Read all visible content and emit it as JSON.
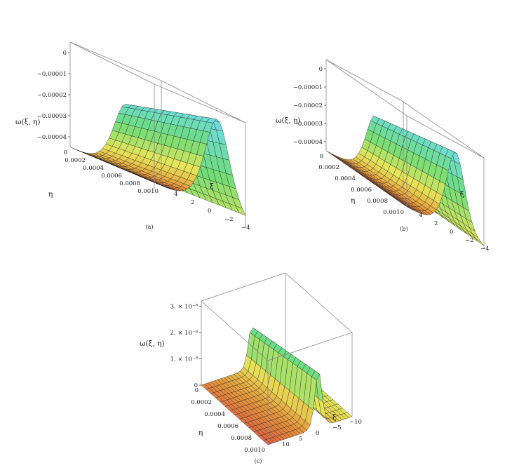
{
  "chart_data": [
    {
      "type": "surface",
      "caption": "(a)",
      "zlabel": "ω(ξ, η)",
      "xlabel": "ξ",
      "ylabel": "η",
      "x_ticks": [
        "4",
        "2",
        "0",
        "−2",
        "−4"
      ],
      "y_ticks": [
        "0",
        "0.0002",
        "0.0004",
        "0.0006",
        "0.0008",
        "0.0010"
      ],
      "z_ticks": [
        "0",
        "−0.00001",
        "−0.00002",
        "−0.00003",
        "−0.00004"
      ],
      "xlim": [
        -4.5,
        4.5
      ],
      "ylim": [
        0,
        0.001
      ],
      "zlim": [
        -4.5e-05,
        5e-06
      ],
      "surface": {
        "description": "ridge along η at ξ≈−1.5, wide sech² profile in ξ",
        "z_min": -4.5e-05,
        "z_max": 0.0,
        "ridge_xi": -1.5,
        "width": 1.0
      }
    },
    {
      "type": "surface",
      "caption": "(b)",
      "zlabel": "ω(ξ, η)",
      "xlabel": "ξ",
      "ylabel": "η",
      "x_ticks": [
        "4",
        "2",
        "0",
        "−2",
        "−4"
      ],
      "y_ticks": [
        "0",
        "0.0002",
        "0.0004",
        "0.0006",
        "0.0008",
        "0.0010"
      ],
      "z_ticks": [
        "0",
        "−0.00001",
        "−0.00002",
        "−0.00003",
        "−0.00004"
      ],
      "xlim": [
        -4.5,
        4.5
      ],
      "ylim": [
        0,
        0.001
      ],
      "zlim": [
        -4.5e-05,
        5e-06
      ],
      "surface": {
        "z_min": -4.5e-05,
        "z_max": 0.0,
        "ridge_xi": -1.2,
        "width": 0.8
      }
    },
    {
      "type": "surface",
      "caption": "(c)",
      "zlabel": "ω(ξ, η)",
      "xlabel": "ξ",
      "ylabel": "η",
      "x_ticks": [
        "10",
        "5",
        "0",
        "−5",
        "−10"
      ],
      "y_ticks": [
        "0",
        "0.0002",
        "0.0004",
        "0.0006",
        "0.0008",
        "0.0010"
      ],
      "z_ticks": [
        "3. × 10⁻⁸",
        "2. × 10⁻⁸",
        "1. × 10⁻⁸",
        "0"
      ],
      "xlim": [
        -10,
        10
      ],
      "ylim": [
        0,
        0.001
      ],
      "zlim": [
        0,
        3.2e-08
      ],
      "surface": {
        "z_min": 0.0,
        "z_max": 2.2e-08,
        "ridge_xi": -2.0,
        "width": 0.6
      }
    }
  ]
}
